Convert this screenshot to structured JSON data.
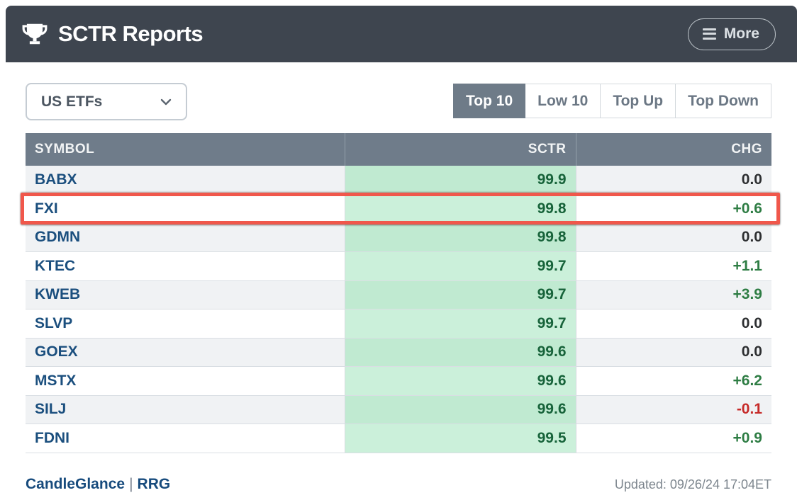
{
  "header": {
    "title": "SCTR Reports",
    "more_button": "More"
  },
  "filters": {
    "market_dropdown": {
      "value": "US ETFs"
    },
    "tabs": [
      {
        "label": "Top 10",
        "active": true
      },
      {
        "label": "Low 10",
        "active": false
      },
      {
        "label": "Top Up",
        "active": false
      },
      {
        "label": "Top Down",
        "active": false
      }
    ]
  },
  "table": {
    "columns": [
      "SYMBOL",
      "SCTR",
      "CHG"
    ],
    "rows": [
      {
        "symbol": "BABX",
        "sctr": "99.9",
        "chg": "0.0"
      },
      {
        "symbol": "FXI",
        "sctr": "99.8",
        "chg": "+0.6",
        "highlighted": true
      },
      {
        "symbol": "GDMN",
        "sctr": "99.8",
        "chg": "0.0"
      },
      {
        "symbol": "KTEC",
        "sctr": "99.7",
        "chg": "+1.1"
      },
      {
        "symbol": "KWEB",
        "sctr": "99.7",
        "chg": "+3.9"
      },
      {
        "symbol": "SLVP",
        "sctr": "99.7",
        "chg": "0.0"
      },
      {
        "symbol": "GOEX",
        "sctr": "99.6",
        "chg": "0.0"
      },
      {
        "symbol": "MSTX",
        "sctr": "99.6",
        "chg": "+6.2"
      },
      {
        "symbol": "SILJ",
        "sctr": "99.6",
        "chg": "-0.1"
      },
      {
        "symbol": "FDNI",
        "sctr": "99.5",
        "chg": "+0.9"
      }
    ]
  },
  "footer": {
    "links": [
      "CandleGlance",
      "RRG"
    ],
    "separator": "|",
    "updated": "Updated: 09/26/24 17:04ET"
  },
  "colors": {
    "header_bar": "#3e454f",
    "table_header": "#6f7c8a",
    "active_tab": "#6e7b88",
    "sctr_column_bg": "#cbf0da",
    "symbol_link": "#1b4f7e",
    "sctr_value": "#17633a",
    "chg_positive": "#2e7d44",
    "chg_negative": "#c62a28",
    "highlight_box": "#f0574b"
  }
}
